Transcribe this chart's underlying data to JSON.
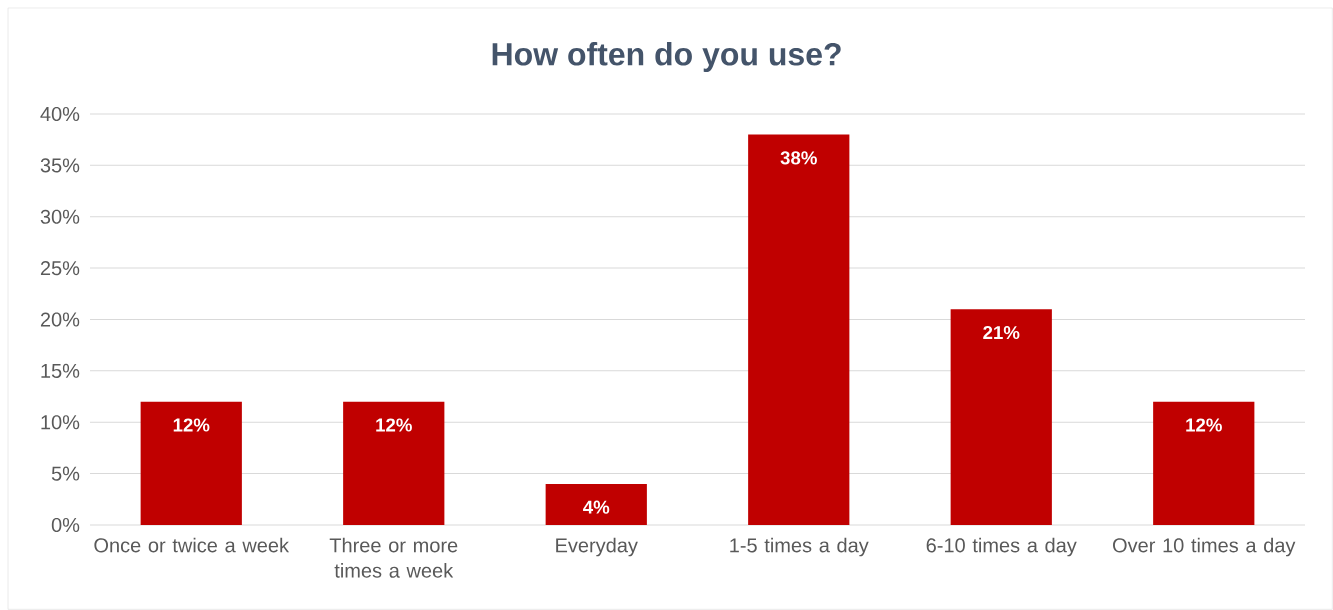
{
  "chart_data": {
    "type": "bar",
    "title": "How often do you use?",
    "categories": [
      "Once or twice a week",
      "Three or more times a week",
      "Everyday",
      "1-5 times a day",
      "6-10 times a day",
      "Over 10 times a day"
    ],
    "values": [
      12,
      12,
      4,
      38,
      21,
      12
    ],
    "value_labels": [
      "12%",
      "12%",
      "4%",
      "38%",
      "21%",
      "12%"
    ],
    "color": "#c00000",
    "ylim": [
      0,
      40
    ],
    "yticks": [
      {
        "value": 0,
        "label": "0%"
      },
      {
        "value": 5,
        "label": "5%"
      },
      {
        "value": 10,
        "label": "10%"
      },
      {
        "value": 15,
        "label": "15%"
      },
      {
        "value": 20,
        "label": "20%"
      },
      {
        "value": 25,
        "label": "25%"
      },
      {
        "value": 30,
        "label": "30%"
      },
      {
        "value": 35,
        "label": "35%"
      },
      {
        "value": 40,
        "label": "40%"
      }
    ],
    "grid": "y"
  }
}
